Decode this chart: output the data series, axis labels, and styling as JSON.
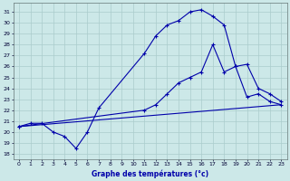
{
  "xlabel": "Graphe des températures (°c)",
  "bg_color": "#cce8e8",
  "grid_color": "#aacccc",
  "line_color": "#0000aa",
  "xlim": [
    -0.5,
    23.5
  ],
  "ylim": [
    17.5,
    31.8
  ],
  "yticks": [
    18,
    19,
    20,
    21,
    22,
    23,
    24,
    25,
    26,
    27,
    28,
    29,
    30,
    31
  ],
  "xticks": [
    0,
    1,
    2,
    3,
    4,
    5,
    6,
    7,
    8,
    9,
    10,
    11,
    12,
    13,
    14,
    15,
    16,
    17,
    18,
    19,
    20,
    21,
    22,
    23
  ],
  "curve1_x": [
    0,
    1,
    2,
    3,
    4,
    5,
    6,
    7,
    11,
    12,
    13,
    14,
    15,
    16,
    17,
    18,
    19,
    20,
    21,
    22,
    23
  ],
  "curve1_y": [
    20.5,
    20.8,
    20.8,
    20.0,
    19.6,
    18.5,
    20.0,
    22.2,
    27.2,
    28.8,
    29.8,
    30.2,
    31.0,
    31.2,
    30.6,
    29.8,
    26.0,
    23.2,
    23.5,
    22.8,
    22.5
  ],
  "curve2_x": [
    0,
    11,
    12,
    13,
    14,
    15,
    16,
    17,
    18,
    19,
    20,
    21,
    22,
    23
  ],
  "curve2_y": [
    20.5,
    22.0,
    22.5,
    23.5,
    24.5,
    25.0,
    25.5,
    28.0,
    25.5,
    26.0,
    26.2,
    24.0,
    23.5,
    22.8
  ],
  "curve3_x": [
    0,
    23
  ],
  "curve3_y": [
    20.5,
    22.5
  ]
}
